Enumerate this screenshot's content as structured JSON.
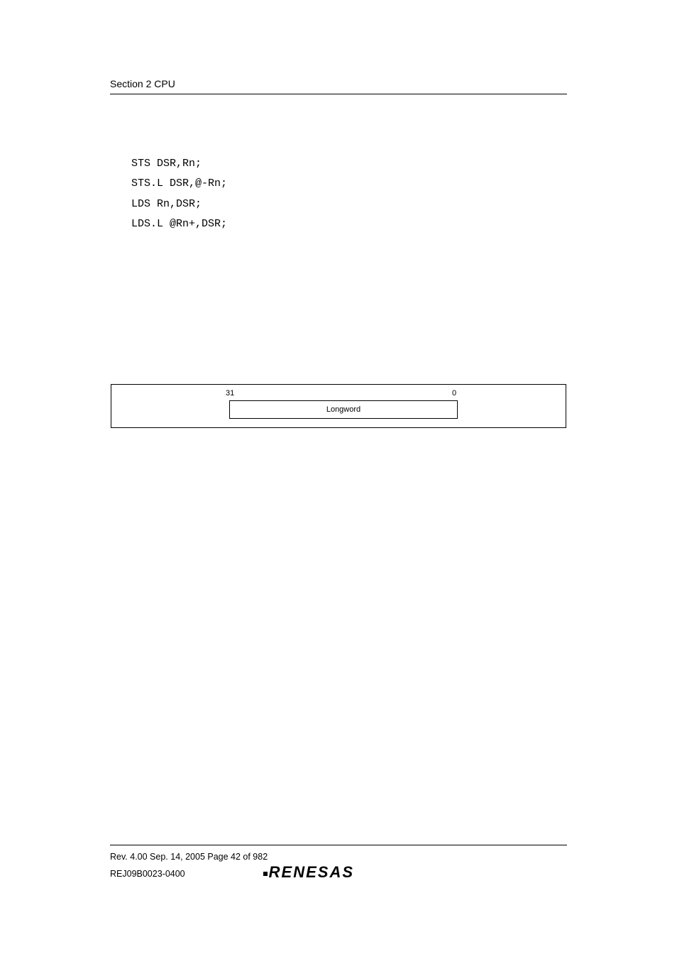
{
  "header": {
    "section_title": "Section 2   CPU"
  },
  "code": {
    "line1": "STS DSR,Rn;",
    "line2": "STS.L DSR,@-Rn;",
    "line3": "LDS Rn,DSR;",
    "line4": "LDS.L @Rn+,DSR;"
  },
  "diagram": {
    "bit_high": "31",
    "bit_low": "0",
    "box_label": "Longword"
  },
  "footer": {
    "line1": "Rev. 4.00  Sep. 14, 2005  Page 42 of 982",
    "line2": "REJ09B0023-0400",
    "logo_text": "RENESAS"
  }
}
